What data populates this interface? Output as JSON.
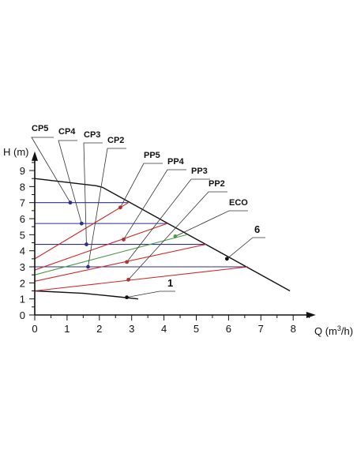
{
  "chart_data": {
    "type": "line",
    "ylabel": "H (m)",
    "xlabel_main": "Q (m",
    "xlabel_sup": "3",
    "xlabel_end": "/h)",
    "xlim": [
      0,
      8.7
    ],
    "ylim": [
      0,
      9.7
    ],
    "x_ticks": [
      "0",
      "1",
      "2",
      "3",
      "4",
      "5",
      "6",
      "7",
      "8"
    ],
    "y_ticks": [
      "0",
      "1",
      "2",
      "3",
      "4",
      "5",
      "6",
      "7",
      "8",
      "9"
    ],
    "colors": {
      "axis": "#111111",
      "max_curve": "#111111",
      "cp": "#2e2e8c",
      "pp": "#d02a2a",
      "eco": "#4a9a4a",
      "mark_cp": "#2e2e8c",
      "mark_pp": "#b03030",
      "mark_eco": "#4a9a4a",
      "mark_black": "#111111"
    },
    "series": [
      {
        "key": "max",
        "color": "max_curve",
        "x": [
          0,
          1.9,
          2.1,
          7.9
        ],
        "y": [
          8.5,
          8.05,
          7.95,
          1.5
        ]
      },
      {
        "key": "min",
        "color": "max_curve",
        "x": [
          0,
          1.5,
          2.5,
          3.2
        ],
        "y": [
          1.5,
          1.35,
          1.15,
          1.0
        ]
      },
      {
        "key": "cp5",
        "color": "cp",
        "x": [
          0,
          2.9
        ],
        "y": [
          7.0,
          7.0
        ]
      },
      {
        "key": "cp4",
        "color": "cp",
        "x": [
          0,
          4.1
        ],
        "y": [
          5.7,
          5.7
        ]
      },
      {
        "key": "cp3",
        "color": "cp",
        "x": [
          0,
          5.3
        ],
        "y": [
          4.4,
          4.4
        ]
      },
      {
        "key": "cp2",
        "color": "cp",
        "x": [
          0,
          6.6
        ],
        "y": [
          3.0,
          3.0
        ]
      },
      {
        "key": "pp5",
        "color": "pp",
        "x": [
          0,
          2.9
        ],
        "y": [
          3.5,
          7.0
        ]
      },
      {
        "key": "pp4",
        "color": "pp",
        "x": [
          0,
          4.1
        ],
        "y": [
          2.8,
          5.7
        ]
      },
      {
        "key": "pp3",
        "color": "pp",
        "x": [
          0,
          5.3
        ],
        "y": [
          2.1,
          4.4
        ]
      },
      {
        "key": "pp2",
        "color": "pp",
        "x": [
          0,
          6.6
        ],
        "y": [
          1.5,
          3.0
        ]
      },
      {
        "key": "eco",
        "color": "eco",
        "x": [
          0,
          4.7
        ],
        "y": [
          2.5,
          5.0
        ]
      }
    ],
    "markers": [
      {
        "key": "cp5",
        "color": "mark_cp",
        "x": 1.1,
        "y": 7.0
      },
      {
        "key": "cp4",
        "color": "mark_cp",
        "x": 1.45,
        "y": 5.7
      },
      {
        "key": "cp3",
        "color": "mark_cp",
        "x": 1.6,
        "y": 4.4
      },
      {
        "key": "cp2",
        "color": "mark_cp",
        "x": 1.65,
        "y": 3.0
      },
      {
        "key": "pp5",
        "color": "mark_pp",
        "x": 2.65,
        "y": 6.7
      },
      {
        "key": "pp4",
        "color": "mark_pp",
        "x": 2.75,
        "y": 4.7
      },
      {
        "key": "pp3",
        "color": "mark_pp",
        "x": 2.85,
        "y": 3.3
      },
      {
        "key": "pp2",
        "color": "mark_pp",
        "x": 2.9,
        "y": 2.2
      },
      {
        "key": "eco",
        "color": "mark_eco",
        "x": 4.35,
        "y": 4.9
      },
      {
        "key": "6",
        "color": "mark_black",
        "x": 5.95,
        "y": 3.5
      },
      {
        "key": "1",
        "color": "mark_black",
        "x": 2.85,
        "y": 1.1
      }
    ],
    "annotations": [
      {
        "key": "cp5",
        "text": "CP5"
      },
      {
        "key": "cp4",
        "text": "CP4"
      },
      {
        "key": "cp3",
        "text": "CP3"
      },
      {
        "key": "cp2",
        "text": "CP2"
      },
      {
        "key": "pp5",
        "text": "PP5"
      },
      {
        "key": "pp4",
        "text": "PP4"
      },
      {
        "key": "pp3",
        "text": "PP3"
      },
      {
        "key": "pp2",
        "text": "PP2"
      },
      {
        "key": "eco",
        "text": "ECO"
      },
      {
        "key": "6",
        "text": "6"
      },
      {
        "key": "1",
        "text": "1"
      }
    ]
  }
}
